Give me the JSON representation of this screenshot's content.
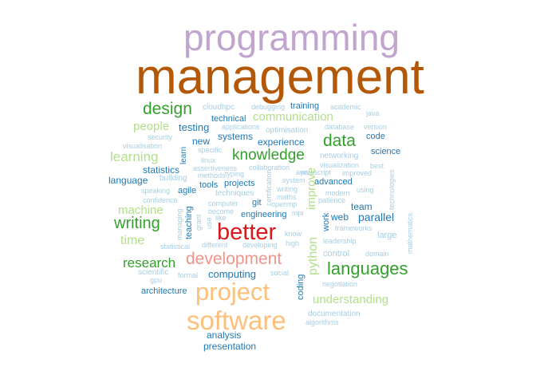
{
  "palette": {
    "purple_light": "#c2a5cf",
    "brown": "#b35806",
    "red": "#d7191c",
    "pink": "#f1948a",
    "orange_light": "#fdc07a",
    "green_dark": "#33a02c",
    "green_light": "#b2df8a",
    "blue_dark": "#1f78b4",
    "blue_light": "#a6cee3"
  },
  "words": [
    {
      "text": "programming",
      "color": "purple_light"
    },
    {
      "text": "management",
      "color": "brown"
    },
    {
      "text": "design",
      "color": "green_dark"
    },
    {
      "text": "cloudhpc",
      "color": "blue_light"
    },
    {
      "text": "debugging",
      "color": "blue_light"
    },
    {
      "text": "training",
      "color": "blue_dark"
    },
    {
      "text": "academic",
      "color": "blue_light"
    },
    {
      "text": "java",
      "color": "blue_light"
    },
    {
      "text": "technical",
      "color": "blue_dark"
    },
    {
      "text": "communication",
      "color": "green_light"
    },
    {
      "text": "people",
      "color": "green_light"
    },
    {
      "text": "testing",
      "color": "blue_dark"
    },
    {
      "text": "applications",
      "color": "blue_light"
    },
    {
      "text": "database",
      "color": "blue_light"
    },
    {
      "text": "version",
      "color": "blue_light"
    },
    {
      "text": "optimisation",
      "color": "blue_light"
    },
    {
      "text": "security",
      "color": "blue_light"
    },
    {
      "text": "systems",
      "color": "blue_dark"
    },
    {
      "text": "data",
      "color": "green_dark"
    },
    {
      "text": "code",
      "color": "blue_dark"
    },
    {
      "text": "visualisation",
      "color": "blue_light"
    },
    {
      "text": "new",
      "color": "blue_dark"
    },
    {
      "text": "experience",
      "color": "blue_dark"
    },
    {
      "text": "learn",
      "color": "blue_dark"
    },
    {
      "text": "specific",
      "color": "blue_light"
    },
    {
      "text": "science",
      "color": "blue_dark"
    },
    {
      "text": "learning",
      "color": "green_light"
    },
    {
      "text": "knowledge",
      "color": "green_dark"
    },
    {
      "text": "networking",
      "color": "blue_light"
    },
    {
      "text": "linux",
      "color": "blue_light"
    },
    {
      "text": "best",
      "color": "blue_light"
    },
    {
      "text": "visualization",
      "color": "blue_light"
    },
    {
      "text": "collaboration",
      "color": "blue_light"
    },
    {
      "text": "statistics",
      "color": "blue_dark"
    },
    {
      "text": "assertiveness",
      "color": "blue_light"
    },
    {
      "text": "aws",
      "color": "blue_light"
    },
    {
      "text": "javascript",
      "color": "blue_light"
    },
    {
      "text": "improved",
      "color": "blue_light"
    },
    {
      "text": "technologies",
      "color": "blue_light"
    },
    {
      "text": "methods",
      "color": "blue_light"
    },
    {
      "text": "typing",
      "color": "blue_light"
    },
    {
      "text": "language",
      "color": "blue_dark"
    },
    {
      "text": "building",
      "color": "blue_light"
    },
    {
      "text": "system",
      "color": "blue_light"
    },
    {
      "text": "tools",
      "color": "blue_dark"
    },
    {
      "text": "projects",
      "color": "blue_dark"
    },
    {
      "text": "advanced",
      "color": "blue_dark"
    },
    {
      "text": "writing",
      "color": "blue_light"
    },
    {
      "text": "using",
      "color": "blue_light"
    },
    {
      "text": "agile",
      "color": "blue_dark"
    },
    {
      "text": "speaking",
      "color": "blue_light"
    },
    {
      "text": "techniques",
      "color": "blue_light"
    },
    {
      "text": "maths",
      "color": "blue_light"
    },
    {
      "text": "modern",
      "color": "blue_light"
    },
    {
      "text": "confidence",
      "color": "blue_light"
    },
    {
      "text": "certification",
      "color": "blue_light"
    },
    {
      "text": "improve",
      "color": "green_light"
    },
    {
      "text": "patience",
      "color": "blue_light"
    },
    {
      "text": "machine",
      "color": "green_light"
    },
    {
      "text": "computer",
      "color": "blue_light"
    },
    {
      "text": "git",
      "color": "blue_dark"
    },
    {
      "text": "openmp",
      "color": "blue_light"
    },
    {
      "text": "team",
      "color": "blue_dark"
    },
    {
      "text": "teaching",
      "color": "blue_dark"
    },
    {
      "text": "become",
      "color": "blue_light"
    },
    {
      "text": "mpi",
      "color": "blue_light"
    },
    {
      "text": "writing",
      "color": "green_dark"
    },
    {
      "text": "grant",
      "color": "blue_light"
    },
    {
      "text": "use",
      "color": "blue_light"
    },
    {
      "text": "like",
      "color": "blue_light"
    },
    {
      "text": "engineering",
      "color": "blue_dark"
    },
    {
      "text": "work",
      "color": "blue_dark"
    },
    {
      "text": "web",
      "color": "blue_dark"
    },
    {
      "text": "parallel",
      "color": "blue_dark"
    },
    {
      "text": "managing",
      "color": "blue_light"
    },
    {
      "text": "frameworks",
      "color": "blue_light"
    },
    {
      "text": "know",
      "color": "blue_light"
    },
    {
      "text": "mathematics",
      "color": "blue_light"
    },
    {
      "text": "better",
      "color": "red"
    },
    {
      "text": "large",
      "color": "blue_light"
    },
    {
      "text": "time",
      "color": "green_light"
    },
    {
      "text": "leadership",
      "color": "blue_light"
    },
    {
      "text": "statistical",
      "color": "blue_light"
    },
    {
      "text": "different",
      "color": "blue_light"
    },
    {
      "text": "developing",
      "color": "blue_light"
    },
    {
      "text": "high",
      "color": "blue_light"
    },
    {
      "text": "python",
      "color": "green_light"
    },
    {
      "text": "control",
      "color": "blue_light"
    },
    {
      "text": "domain",
      "color": "blue_light"
    },
    {
      "text": "research",
      "color": "green_dark"
    },
    {
      "text": "development",
      "color": "pink"
    },
    {
      "text": "languages",
      "color": "green_dark"
    },
    {
      "text": "scientific",
      "color": "blue_light"
    },
    {
      "text": "formal",
      "color": "blue_light"
    },
    {
      "text": "computing",
      "color": "blue_dark"
    },
    {
      "text": "social",
      "color": "blue_light"
    },
    {
      "text": "coding",
      "color": "blue_dark"
    },
    {
      "text": "gpu",
      "color": "blue_light"
    },
    {
      "text": "negotiation",
      "color": "blue_light"
    },
    {
      "text": "project",
      "color": "orange_light"
    },
    {
      "text": "architecture",
      "color": "blue_dark"
    },
    {
      "text": "understanding",
      "color": "green_light"
    },
    {
      "text": "documentation",
      "color": "blue_light"
    },
    {
      "text": "software",
      "color": "orange_light"
    },
    {
      "text": "algorithms",
      "color": "blue_light"
    },
    {
      "text": "analysis",
      "color": "blue_dark"
    },
    {
      "text": "presentation",
      "color": "blue_dark"
    }
  ]
}
